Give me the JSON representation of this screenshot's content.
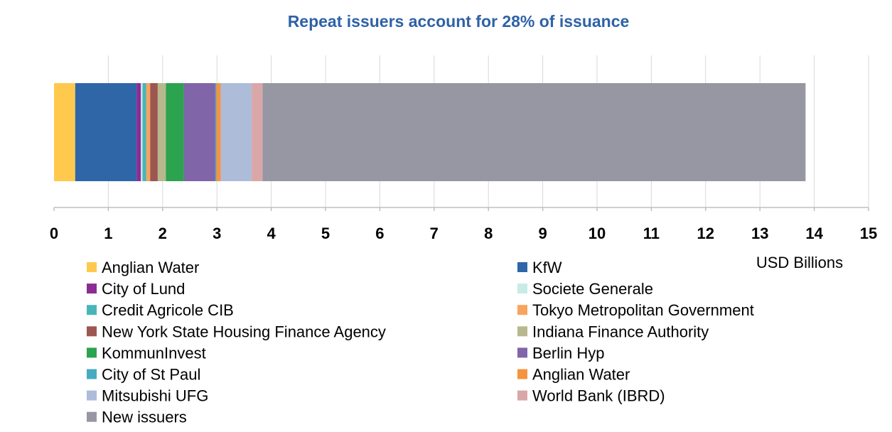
{
  "chart_data": {
    "type": "bar",
    "orientation": "horizontal",
    "stacked": true,
    "title": "Repeat issuers account for 28% of issuance",
    "xlabel": "USD Billions",
    "ylabel": "",
    "xlim": [
      0,
      15
    ],
    "x_ticks": [
      "0",
      "1",
      "2",
      "3",
      "4",
      "5",
      "6",
      "7",
      "8",
      "9",
      "10",
      "11",
      "12",
      "13",
      "14",
      "15"
    ],
    "grid": "vertical",
    "legend_position": "bottom",
    "colors": {
      "title": "#2e62a6",
      "grid": "#d9d9d9",
      "axis": "#bfbfbf"
    },
    "series": [
      {
        "name": "Anglian Water",
        "value": 0.39,
        "color": "#ffc94d"
      },
      {
        "name": "KfW",
        "value": 1.13,
        "color": "#2e66a8"
      },
      {
        "name": "City of Lund",
        "value": 0.08,
        "color": "#8b2c94"
      },
      {
        "name": "Societe Generale",
        "value": 0.03,
        "color": "#c8ebe6"
      },
      {
        "name": "Credit Agricole CIB",
        "value": 0.07,
        "color": "#4ab5b8"
      },
      {
        "name": "Tokyo Metropolitan Government",
        "value": 0.07,
        "color": "#f7a45e"
      },
      {
        "name": "New York State Housing Finance Agency",
        "value": 0.14,
        "color": "#9c5750"
      },
      {
        "name": "Indiana Finance Authority",
        "value": 0.15,
        "color": "#b8b88e"
      },
      {
        "name": "KommunInvest",
        "value": 0.33,
        "color": "#2ba34f"
      },
      {
        "name": "Berlin Hyp",
        "value": 0.58,
        "color": "#8065a8"
      },
      {
        "name": "City of St Paul",
        "value": 0.02,
        "color": "#45abc2"
      },
      {
        "name": "Anglian Water",
        "value": 0.08,
        "color": "#f59440"
      },
      {
        "name": "Mitsubishi UFG",
        "value": 0.57,
        "color": "#adbcd9"
      },
      {
        "name": "World Bank (IBRD)",
        "value": 0.2,
        "color": "#d9a7a8"
      },
      {
        "name": "New issuers",
        "value": 10.0,
        "color": "#9697a2"
      }
    ]
  }
}
